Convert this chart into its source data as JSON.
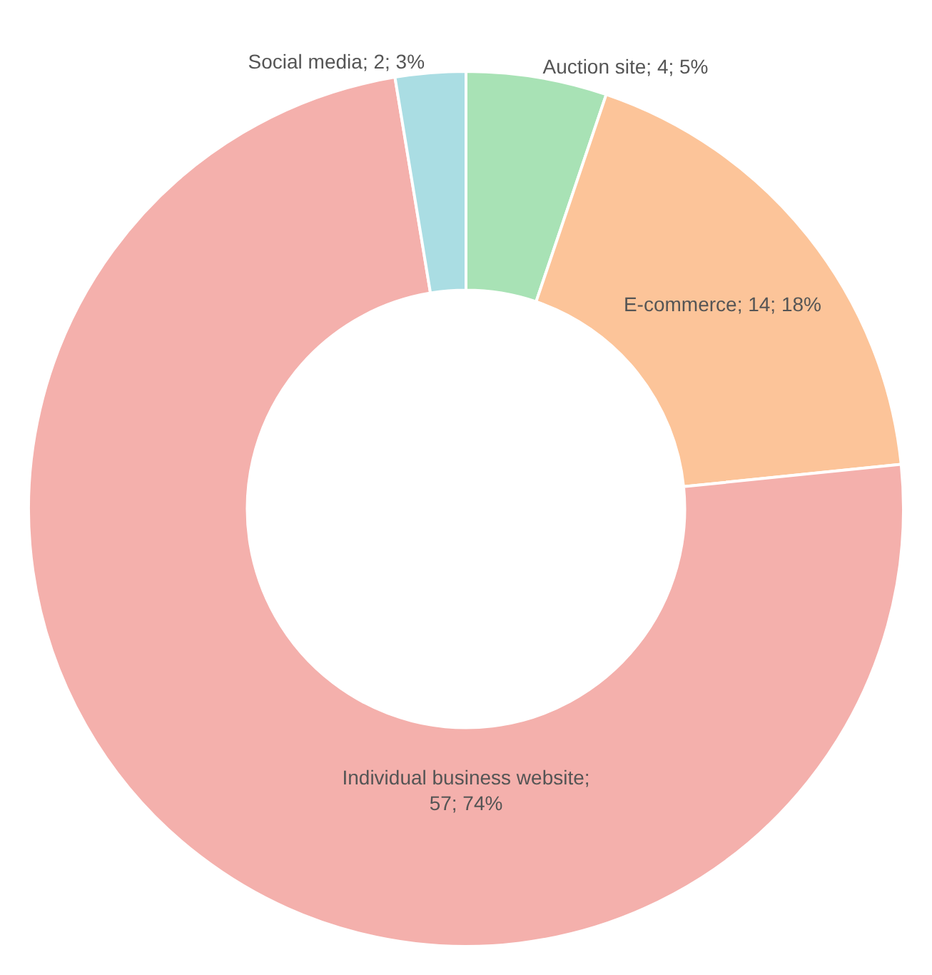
{
  "chart_data": {
    "type": "donut",
    "categories": [
      "Auction site",
      "E-commerce",
      "Individual business website",
      "Social media"
    ],
    "values": [
      4,
      14,
      57,
      2
    ],
    "colors": [
      "#a8e2b5",
      "#fcc499",
      "#f4b0ac",
      "#aadde3"
    ],
    "value_labels": [
      "; 4; 5%",
      "; 14; 18%",
      ";\n57; 74%",
      "; 2; 3%"
    ],
    "legend": false
  }
}
